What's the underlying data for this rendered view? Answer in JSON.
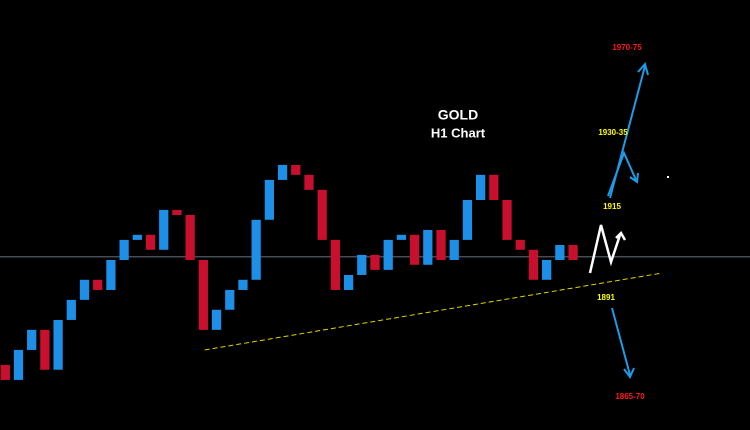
{
  "chart_data": {
    "type": "candlestick",
    "title": "GOLD",
    "subtitle": "H1 Chart",
    "xlim": [
      -0.4,
      56.4
    ],
    "ylim": [
      1839,
      1991
    ],
    "open": [
      1862.0,
      1856.7,
      1867.3,
      1874.4,
      1860.3,
      1877.9,
      1885.0,
      1892.1,
      1888.5,
      1899.1,
      1906.2,
      1908.0,
      1902.7,
      1916.8,
      1915.0,
      1899.1,
      1874.4,
      1881.5,
      1888.5,
      1892.1,
      1913.3,
      1927.4,
      1932.7,
      1929.2,
      1923.9,
      1906.2,
      1888.5,
      1893.8,
      1900.9,
      1895.6,
      1906.2,
      1908.0,
      1897.4,
      1909.7,
      1899.1,
      1906.2,
      1920.3,
      1929.2,
      1920.3,
      1906.2,
      1902.7,
      1892.1,
      1899.1,
      1904.4
    ],
    "close": [
      1856.7,
      1867.3,
      1874.4,
      1860.3,
      1877.9,
      1885.0,
      1892.1,
      1888.5,
      1899.1,
      1906.2,
      1908.0,
      1902.7,
      1916.8,
      1915.0,
      1899.1,
      1874.4,
      1881.5,
      1888.5,
      1892.1,
      1913.3,
      1927.4,
      1932.7,
      1929.2,
      1923.9,
      1906.2,
      1888.5,
      1893.8,
      1900.9,
      1895.6,
      1906.2,
      1908.0,
      1897.4,
      1909.7,
      1899.1,
      1906.2,
      1920.3,
      1929.2,
      1920.3,
      1906.2,
      1902.7,
      1892.1,
      1899.1,
      1904.4,
      1899.1
    ],
    "up_color": "#1e8fe6",
    "down_color": "#c8102e",
    "level_line": {
      "value": 1900.2,
      "color": "#8a9aa8"
    },
    "trendline": {
      "x": [
        15.1,
        49.75
      ],
      "y": [
        1867.3,
        1894.5
      ],
      "color": "#e6d200"
    },
    "annotations": [
      {
        "text": "1970-75",
        "color": "#ff1a1a"
      },
      {
        "text": "1930-35",
        "color": "#ffff00"
      },
      {
        "text": "1915",
        "color": "#ffff00"
      },
      {
        "text": "1891",
        "color": "#ffff00"
      },
      {
        "text": "1865-70",
        "color": "#ff1a1a"
      }
    ]
  }
}
